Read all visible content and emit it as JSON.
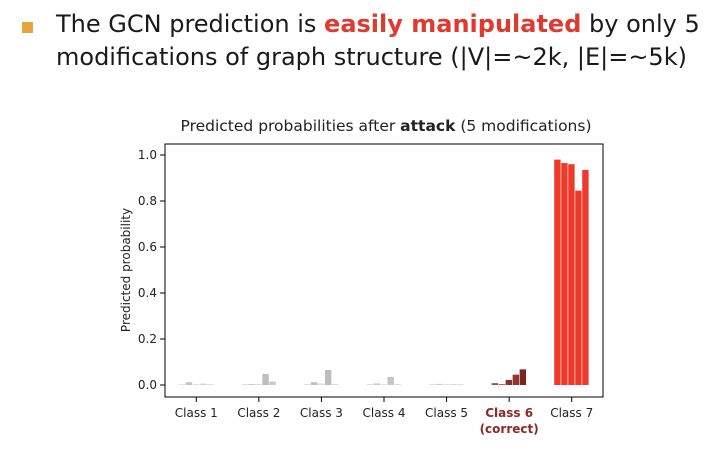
{
  "slide": {
    "headline_part1": "The GCN prediction is ",
    "headline_emph": "easily manipulated",
    "headline_part2": " by only 5 modifications of graph structure (|V|=~2k, |E|=~5k)",
    "bullet_color": "#e8a33d",
    "emph_color": "#e03a2e"
  },
  "chart_data": {
    "type": "bar",
    "title_prefix": "Predicted probabilities after ",
    "title_bold": "attack",
    "title_suffix": " (5 modifications)",
    "xlabel": "",
    "ylabel": "Predicted probability",
    "ylim": [
      0,
      1.05
    ],
    "yticks": [
      0.0,
      0.2,
      0.4,
      0.6,
      0.8,
      1.0
    ],
    "ytick_labels": [
      "0.0",
      "0.2",
      "0.4",
      "0.6",
      "0.8",
      "1.0"
    ],
    "grid": false,
    "legend": "none",
    "categories": [
      "Class 1",
      "Class 2",
      "Class 3",
      "Class 4",
      "Class 5",
      "Class 6",
      "Class 7"
    ],
    "category_sublabels": [
      "",
      "",
      "",
      "",
      "",
      "(correct)",
      ""
    ],
    "highlight_category_index": 5,
    "highlight_label_color": "#8b2a26",
    "bars_per_category": 5,
    "values": [
      [
        0.003,
        0.012,
        0.004,
        0.006,
        0.003
      ],
      [
        0.002,
        0.004,
        0.005,
        0.048,
        0.015
      ],
      [
        0.002,
        0.012,
        0.007,
        0.065,
        0.004
      ],
      [
        0.002,
        0.007,
        0.003,
        0.035,
        0.003
      ],
      [
        0.002,
        0.005,
        0.003,
        0.003,
        0.002
      ],
      [
        0.008,
        0.004,
        0.022,
        0.045,
        0.068
      ],
      [
        0.98,
        0.965,
        0.96,
        0.845,
        0.935
      ]
    ],
    "bar_colors": [
      [
        "#d9d9d9",
        "#c4c4c4",
        "#dddddd",
        "#cfcfcf",
        "#d6d6d6"
      ],
      [
        "#d9d9d9",
        "#c4c4c4",
        "#dddddd",
        "#bdbdbd",
        "#c8c8c8"
      ],
      [
        "#d9d9d9",
        "#bdbdbd",
        "#dddddd",
        "#bdbdbd",
        "#d6d6d6"
      ],
      [
        "#d9d9d9",
        "#c8c8c8",
        "#dddddd",
        "#c4c4c4",
        "#d6d6d6"
      ],
      [
        "#d9d9d9",
        "#cccccc",
        "#dddddd",
        "#d0d0d0",
        "#d6d6d6"
      ],
      [
        "#a84a44",
        "#b55a53",
        "#8b2f2a",
        "#963530",
        "#7a2620"
      ],
      [
        "#ee3a2c",
        "#ee3a2c",
        "#ee3a2c",
        "#ee3a2c",
        "#ee3a2c"
      ]
    ]
  }
}
